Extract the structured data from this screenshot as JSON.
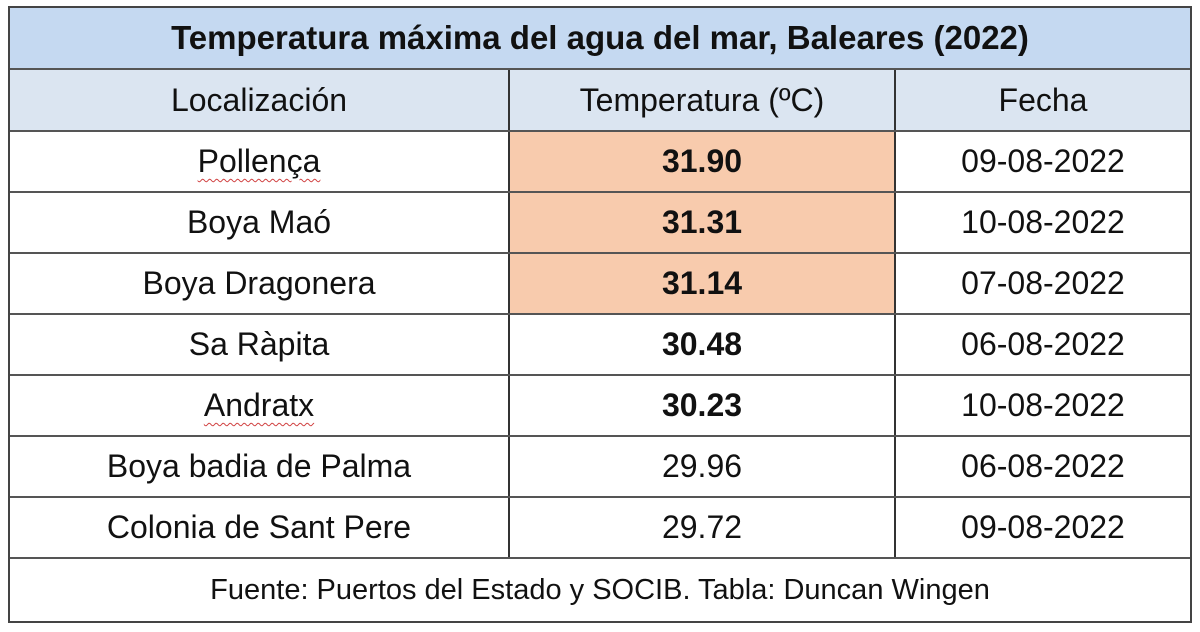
{
  "table": {
    "title": "Temperatura máxima del agua del mar, Baleares (2022)",
    "columns": [
      "Localización",
      "Temperatura (ºC)",
      "Fecha"
    ],
    "rows": [
      {
        "location": "Pollença",
        "temperature": "31.90",
        "date": "09-08-2022",
        "bold": true,
        "highlight": true
      },
      {
        "location": "Boya Maó",
        "temperature": "31.31",
        "date": "10-08-2022",
        "bold": true,
        "highlight": true
      },
      {
        "location": "Boya Dragonera",
        "temperature": "31.14",
        "date": "07-08-2022",
        "bold": true,
        "highlight": true
      },
      {
        "location": "Sa Ràpita",
        "temperature": "30.48",
        "date": "06-08-2022",
        "bold": true,
        "highlight": false
      },
      {
        "location": "Andratx",
        "temperature": "30.23",
        "date": "10-08-2022",
        "bold": true,
        "highlight": false
      },
      {
        "location": "Boya badia de Palma",
        "temperature": "29.96",
        "date": "06-08-2022",
        "bold": false,
        "highlight": false
      },
      {
        "location": "Colonia de Sant Pere",
        "temperature": "29.72",
        "date": "09-08-2022",
        "bold": false,
        "highlight": false
      }
    ],
    "footer": "Fuente: Puertos del Estado y SOCIB. Tabla: Duncan Wingen",
    "colors": {
      "title_bg": "#c5d9f1",
      "header_bg": "#dbe5f1",
      "highlight_bg": "#f8cbad"
    }
  }
}
